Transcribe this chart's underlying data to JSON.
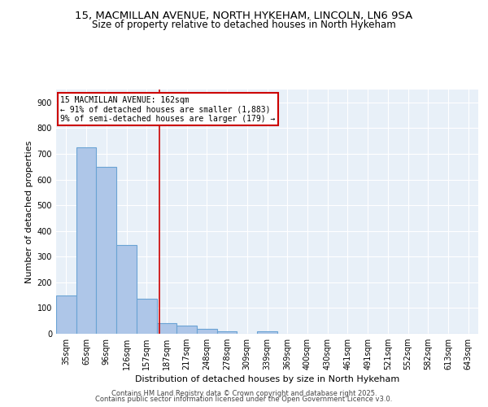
{
  "title_line1": "15, MACMILLAN AVENUE, NORTH HYKEHAM, LINCOLN, LN6 9SA",
  "title_line2": "Size of property relative to detached houses in North Hykeham",
  "xlabel": "Distribution of detached houses by size in North Hykeham",
  "ylabel": "Number of detached properties",
  "categories": [
    "35sqm",
    "65sqm",
    "96sqm",
    "126sqm",
    "157sqm",
    "187sqm",
    "217sqm",
    "248sqm",
    "278sqm",
    "309sqm",
    "339sqm",
    "369sqm",
    "400sqm",
    "430sqm",
    "461sqm",
    "491sqm",
    "521sqm",
    "552sqm",
    "582sqm",
    "613sqm",
    "643sqm"
  ],
  "values": [
    150,
    725,
    650,
    345,
    135,
    42,
    32,
    18,
    10,
    0,
    10,
    0,
    0,
    0,
    0,
    0,
    0,
    0,
    0,
    0,
    0
  ],
  "bar_color": "#aec6e8",
  "bar_edgecolor": "#6aa3d4",
  "bar_linewidth": 0.8,
  "vline_x": 4.62,
  "vline_color": "#cc0000",
  "vline_linewidth": 1.2,
  "annotation_text": "15 MACMILLAN AVENUE: 162sqm\n← 91% of detached houses are smaller (1,883)\n9% of semi-detached houses are larger (179) →",
  "annotation_fontsize": 7.0,
  "annotation_box_color": "#cc0000",
  "ylim": [
    0,
    950
  ],
  "yticks": [
    0,
    100,
    200,
    300,
    400,
    500,
    600,
    700,
    800,
    900
  ],
  "bg_color": "#e8f0f8",
  "grid_color": "#ffffff",
  "footer_line1": "Contains HM Land Registry data © Crown copyright and database right 2025.",
  "footer_line2": "Contains public sector information licensed under the Open Government Licence v3.0.",
  "title_fontsize": 9.5,
  "subtitle_fontsize": 8.5,
  "axis_label_fontsize": 8.0,
  "tick_fontsize": 7.0,
  "footer_fontsize": 6.0
}
